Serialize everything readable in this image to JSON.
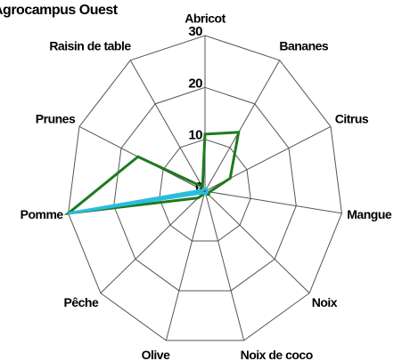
{
  "chart_data": {
    "type": "radar",
    "title": "Agrocampus Ouest",
    "categories": [
      "Abricot",
      "Bananes",
      "Citrus",
      "Mangue",
      "Noix",
      "Noix de coco",
      "Olive",
      "Pêche",
      "Pomme",
      "Prunes",
      "Raisin de table"
    ],
    "ylim": [
      0,
      30
    ],
    "yticks": [
      0,
      10,
      20,
      30
    ],
    "series": [
      {
        "color": "#1e7a1e",
        "values": [
          11,
          13.5,
          6,
          1,
          1,
          0.5,
          0.5,
          2,
          30,
          16,
          1
        ]
      },
      {
        "color": "#2bbde0",
        "values": [
          0.5,
          0.5,
          0.5,
          0.5,
          0.5,
          0.5,
          0.5,
          0.5,
          30,
          0.5,
          0.5
        ]
      }
    ]
  }
}
